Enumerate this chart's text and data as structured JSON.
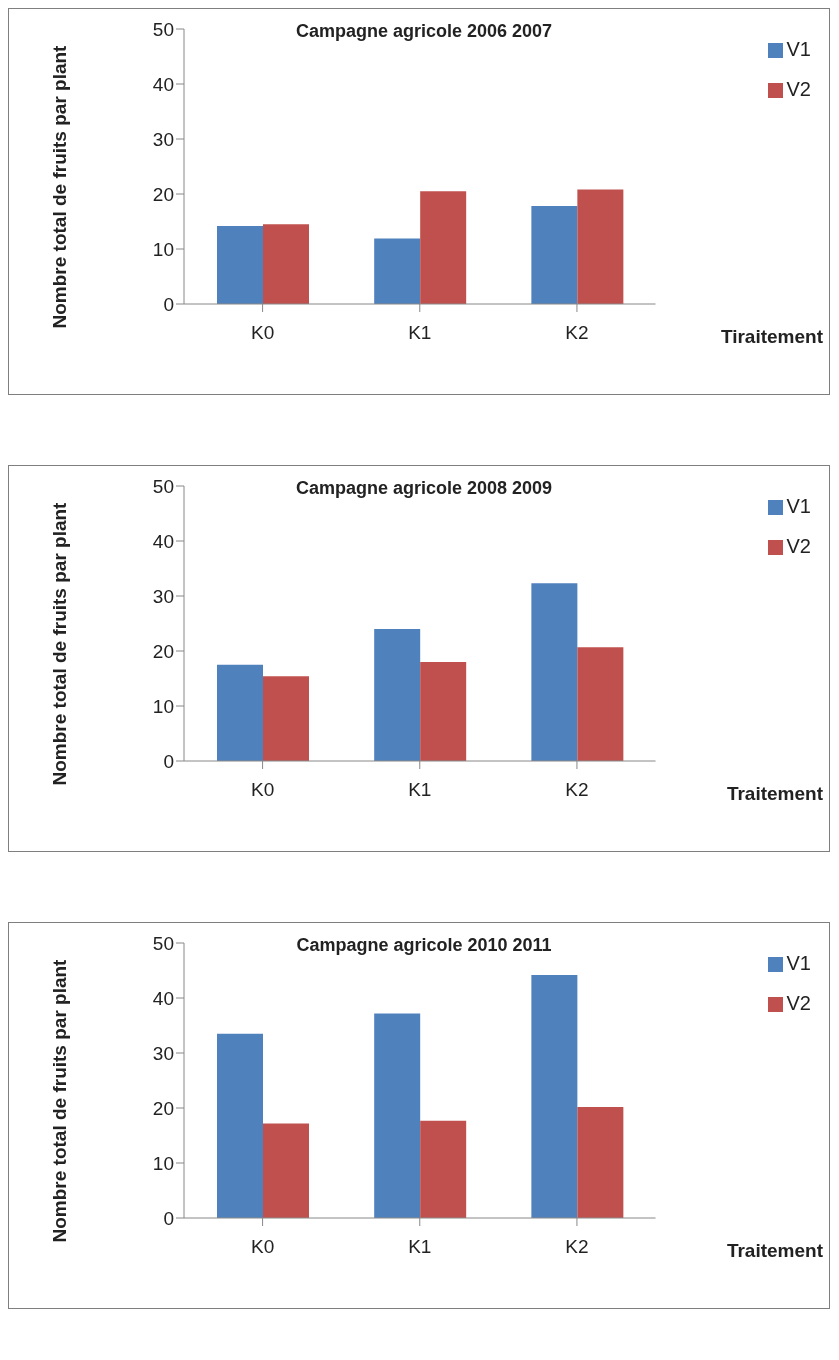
{
  "chart_data": [
    {
      "type": "bar",
      "title": "Campagne agricole 2006 2007",
      "xlabel": "Tiraitement",
      "ylabel": "Nombre total de fruits par plant",
      "categories": [
        "K0",
        "K1",
        "K2"
      ],
      "ylim": [
        0,
        50
      ],
      "yticks": [
        0,
        10,
        20,
        30,
        40,
        50
      ],
      "legend": "top right",
      "series": [
        {
          "name": "V1",
          "color": "#4f81bd",
          "values": [
            14.2,
            11.9,
            17.8
          ]
        },
        {
          "name": "V2",
          "color": "#c0504d",
          "values": [
            14.5,
            20.5,
            20.8
          ]
        }
      ]
    },
    {
      "type": "bar",
      "title": "Campagne agricole 2008 2009",
      "xlabel": "Traitement",
      "ylabel": "Nombre total de fruits par plant",
      "categories": [
        "K0",
        "K1",
        "K2"
      ],
      "ylim": [
        0,
        50
      ],
      "yticks": [
        0,
        10,
        20,
        30,
        40,
        50
      ],
      "legend": "top right",
      "series": [
        {
          "name": "V1",
          "color": "#4f81bd",
          "values": [
            17.5,
            24.0,
            32.3
          ]
        },
        {
          "name": "V2",
          "color": "#c0504d",
          "values": [
            15.4,
            18.0,
            20.7
          ]
        }
      ]
    },
    {
      "type": "bar",
      "title": "Campagne agricole 2010 2011",
      "xlabel": "Traitement",
      "ylabel": "Nombre total de fruits par plant",
      "categories": [
        "K0",
        "K1",
        "K2"
      ],
      "ylim": [
        0,
        50
      ],
      "yticks": [
        0,
        10,
        20,
        30,
        40,
        50
      ],
      "legend": "top right",
      "series": [
        {
          "name": "V1",
          "color": "#4f81bd",
          "values": [
            33.5,
            37.2,
            44.2
          ]
        },
        {
          "name": "V2",
          "color": "#c0504d",
          "values": [
            17.2,
            17.7,
            20.2
          ]
        }
      ]
    }
  ]
}
